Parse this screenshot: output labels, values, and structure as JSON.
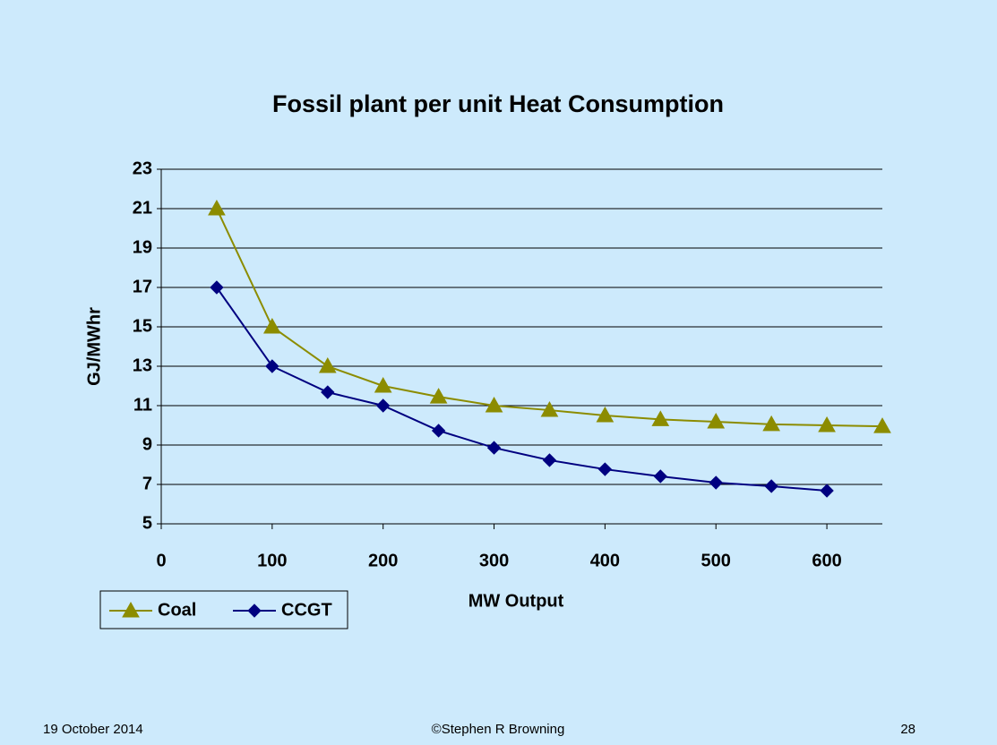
{
  "chart_data": {
    "type": "line",
    "title": "Fossil plant per unit Heat Consumption",
    "x_label": "MW Output",
    "y_label": "GJ/MWhr",
    "x": [
      50,
      100,
      150,
      200,
      250,
      300,
      350,
      400,
      450,
      500,
      550,
      600,
      650
    ],
    "series": [
      {
        "name": "Coal",
        "color": "#8c8c00",
        "marker": "triangle",
        "values": [
          21,
          15,
          13,
          12,
          11.45,
          11,
          10.77,
          10.5,
          10.3,
          10.18,
          10.05,
          10,
          9.95
        ]
      },
      {
        "name": "CCGT",
        "color": "#000080",
        "marker": "diamond",
        "values": [
          17,
          13,
          11.68,
          11,
          9.73,
          8.86,
          8.23,
          7.77,
          7.41,
          7.09,
          6.91,
          6.68,
          null
        ]
      }
    ],
    "xlim": [
      0,
      650
    ],
    "xticks": [
      0,
      100,
      200,
      300,
      400,
      500,
      600
    ],
    "ylim": [
      5,
      23
    ],
    "yticks": [
      5,
      7,
      9,
      11,
      13,
      15,
      17,
      19,
      21,
      23
    ],
    "grid": true,
    "legend": "bottom-left"
  },
  "footer": {
    "date": "19 October 2014",
    "author": "©Stephen R Browning",
    "page": "28"
  }
}
